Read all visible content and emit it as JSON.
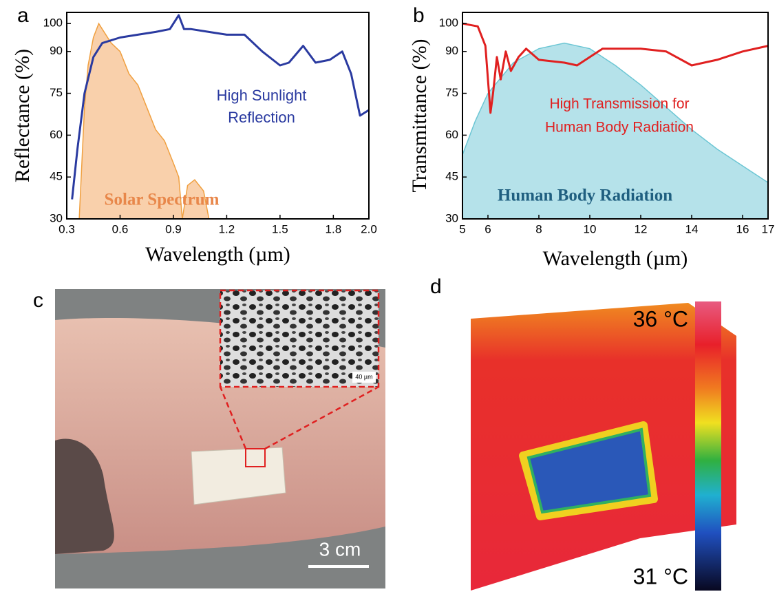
{
  "chart_data": [
    {
      "type": "line",
      "panel": "a",
      "xlabel": "Wavelength (µm)",
      "ylabel": "Reflectance (%)",
      "xlim": [
        0.3,
        2.0
      ],
      "ylim": [
        30,
        104
      ],
      "xticks": [
        0.3,
        0.6,
        0.9,
        1.2,
        1.5,
        1.8,
        {
          "value": 2.0,
          "label": "2.0"
        }
      ],
      "yticks": [
        30,
        45,
        60,
        75,
        90,
        100
      ],
      "annotations": [
        "High Sunlight",
        "Reflection",
        "Solar Spectrum"
      ],
      "series": [
        {
          "color": "#f0a040",
          "fill": "#f8c89c",
          "area": true,
          "x": [
            0.37,
            0.4,
            0.42,
            0.45,
            0.48,
            0.5,
            0.55,
            0.6,
            0.65,
            0.7,
            0.75,
            0.8,
            0.85,
            0.9,
            0.93,
            0.95,
            0.98,
            1.02,
            1.07,
            1.1
          ],
          "values": [
            30,
            70,
            85,
            95,
            100,
            98,
            93,
            90,
            82,
            78,
            70,
            62,
            58,
            50,
            45,
            30,
            42,
            44,
            40,
            30
          ]
        },
        {
          "color": "#2a3aa0",
          "x": [
            0.33,
            0.36,
            0.4,
            0.45,
            0.5,
            0.6,
            0.7,
            0.8,
            0.88,
            0.93,
            0.96,
            1.0,
            1.1,
            1.2,
            1.3,
            1.4,
            1.5,
            1.55,
            1.63,
            1.7,
            1.78,
            1.85,
            1.9,
            1.95,
            2.0
          ],
          "values": [
            37,
            55,
            75,
            88,
            93,
            95,
            96,
            97,
            98,
            103,
            98,
            98,
            97,
            96,
            96,
            90,
            85,
            86,
            92,
            86,
            87,
            90,
            82,
            67,
            69
          ]
        }
      ]
    },
    {
      "type": "line",
      "panel": "b",
      "xlabel": "Wavelength (µm)",
      "ylabel": "Transmittance (%)",
      "xlim": [
        5,
        17
      ],
      "ylim": [
        30,
        104
      ],
      "xticks": [
        5,
        6,
        8,
        10,
        12,
        14,
        16,
        17
      ],
      "yticks": [
        30,
        45,
        60,
        75,
        90,
        100
      ],
      "annotations": [
        "High Transmission for",
        "Human Body Radiation",
        "Human Body Radiation"
      ],
      "series": [
        {
          "color": "#6cc6d4",
          "fill": "#a8dde6",
          "area": true,
          "x": [
            5,
            5.5,
            6,
            7,
            8,
            9,
            10,
            11,
            12,
            13,
            14,
            15,
            16,
            17
          ],
          "values": [
            53,
            65,
            75,
            86,
            91,
            93,
            91,
            85,
            78,
            70,
            62,
            55,
            49,
            43
          ]
        },
        {
          "color": "#e02020",
          "x": [
            5,
            5.6,
            5.9,
            6.1,
            6.2,
            6.35,
            6.5,
            6.7,
            6.9,
            7.2,
            7.5,
            8,
            9,
            9.5,
            10,
            10.5,
            12,
            13,
            14,
            15,
            16,
            17
          ],
          "values": [
            100,
            99,
            92,
            68,
            75,
            88,
            80,
            90,
            83,
            88,
            91,
            87,
            86,
            85,
            88,
            91,
            91,
            90,
            85,
            87,
            90,
            92
          ]
        }
      ]
    }
  ],
  "photos": {
    "c": {
      "panel": "c",
      "scale_bar": "3 cm",
      "inset_scale": "40 µm"
    },
    "d": {
      "panel": "d",
      "max_label": "36 °C",
      "min_label": "31 °C"
    }
  }
}
